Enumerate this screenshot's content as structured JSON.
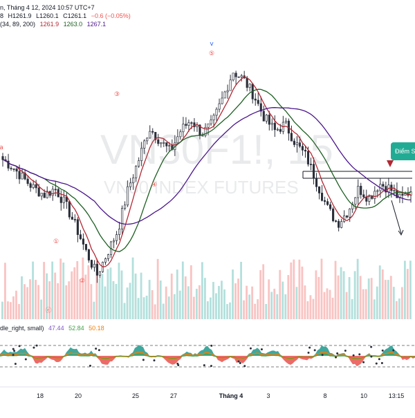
{
  "header": {
    "line1": "n, Tháng 4 12, 2024 10:57 UTC+7",
    "ohlc_o": "8",
    "ohlc_h": "H1261.9",
    "ohlc_l": "L1260.1",
    "ohlc_c": "C1261.1",
    "ohlc_chg": "−0.6 (−0.05%)",
    "ma_params": "(34, 89, 200)",
    "ma1": "1261.9",
    "ma2": "1263.0",
    "ma3": "1267.1",
    "osc_label": "dle_right, small)",
    "osc_v1": "47.44",
    "osc_v2": "52.84",
    "osc_v3": "50.18"
  },
  "colors": {
    "up": "#26a69a",
    "down": "#ef5350",
    "ma1": "#b22833",
    "ma2": "#1b5e20",
    "ma3": "#4a148c",
    "osc_line1": "#7e57c2",
    "osc_line2": "#43a047",
    "osc_line3": "#f57c00",
    "accent": "#22ab94"
  },
  "watermark": {
    "symbol": "VN30F1!, 15",
    "name": "VN30 INDEX FUTURES"
  },
  "callout_text": "Điểm St",
  "wave_labels": [
    "v",
    "⑤",
    "③",
    "④",
    "①",
    "②",
    "ⓒ",
    "a"
  ],
  "x_axis": {
    "labels": [
      "18",
      "20",
      "25",
      "27",
      "Tháng 4",
      "3",
      "8",
      "10",
      "13:15"
    ]
  },
  "chart_data": {
    "type": "candlestick",
    "title": "VN30 INDEX FUTURES",
    "last_price": 1261.1,
    "moving_averages": [
      {
        "period": 34,
        "value": 1261.9,
        "color": "#b22833"
      },
      {
        "period": 89,
        "value": 1263.0,
        "color": "#1b5e20"
      },
      {
        "period": 200,
        "value": 1267.1,
        "color": "#4a148c"
      }
    ],
    "price_trend": [
      1280,
      1275,
      1268,
      1262,
      1258,
      1262,
      1252,
      1238,
      1222,
      1208,
      1222,
      1236,
      1262,
      1280,
      1300,
      1292,
      1285,
      1298,
      1305,
      1296,
      1302,
      1318,
      1335,
      1330,
      1320,
      1306,
      1298,
      1302,
      1290,
      1282,
      1266,
      1250,
      1240,
      1248,
      1262,
      1256,
      1265,
      1262,
      1255,
      1261
    ],
    "oscillator": {
      "values": [
        47.44,
        52.84,
        50.18
      ]
    }
  }
}
